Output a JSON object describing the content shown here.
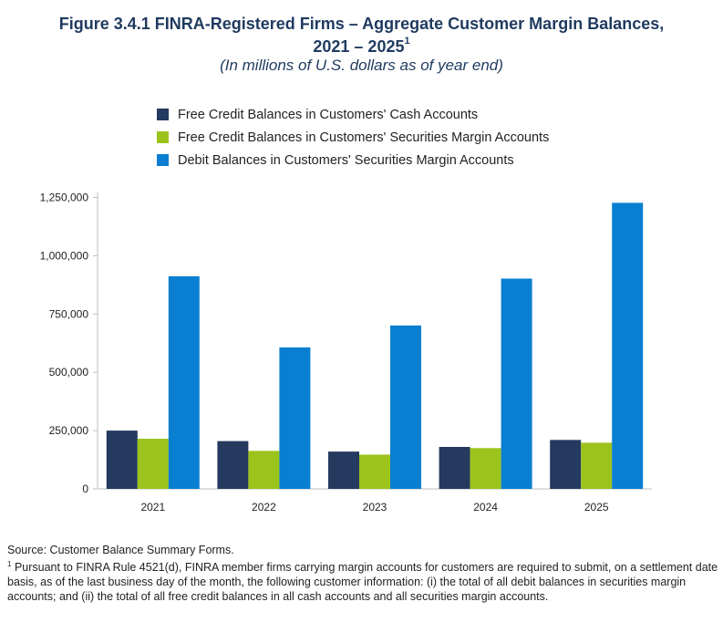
{
  "title": {
    "line1": "Figure 3.4.1 FINRA-Registered Firms – Aggregate Customer Margin Balances,",
    "line2": "2021 – 2025",
    "sup": "1",
    "subtitle": "(In millions of U.S. dollars as of year end)"
  },
  "colors": {
    "cash": "#243a5e",
    "securities": "#9bc31c",
    "debit": "#0a7fd1",
    "axis": "#bfbfbf"
  },
  "legend": [
    {
      "label": "Free Credit Balances in Customers' Cash Accounts",
      "color": "#243a5e"
    },
    {
      "label": "Free Credit Balances in Customers' Securities Margin Accounts",
      "color": "#9bc31c"
    },
    {
      "label": "Debit Balances in Customers' Securities Margin Accounts",
      "color": "#0a7fd1"
    }
  ],
  "chart_data": {
    "type": "bar",
    "title": "Figure 3.4.1 FINRA-Registered Firms – Aggregate Customer Margin Balances, 2021 – 2025",
    "subtitle": "(In millions of U.S. dollars as of year end)",
    "categories": [
      "2021",
      "2022",
      "2023",
      "2024",
      "2025"
    ],
    "series": [
      {
        "name": "Free Credit Balances in Customers' Cash Accounts",
        "color": "#243a5e",
        "values": [
          250000,
          205000,
          160000,
          180000,
          210000
        ]
      },
      {
        "name": "Free Credit Balances in Customers' Securities Margin Accounts",
        "color": "#9bc31c",
        "values": [
          215000,
          163000,
          147000,
          175000,
          198000
        ]
      },
      {
        "name": "Debit Balances in Customers' Securities Margin Accounts",
        "color": "#0a7fd1",
        "values": [
          912000,
          607000,
          701000,
          902000,
          1227000
        ]
      }
    ],
    "ylim": [
      0,
      1250000
    ],
    "yticks": [
      0,
      250000,
      500000,
      750000,
      1000000,
      1250000
    ],
    "ytick_labels": [
      "0",
      "250,000",
      "500,000",
      "750,000",
      "1,000,000",
      "1,250,000"
    ],
    "legend_position": "top-left",
    "grid": false
  },
  "footer": {
    "source": "Source: Customer Balance Summary Forms.",
    "note_sup": "1",
    "note": "Pursuant to FINRA Rule 4521(d), FINRA member firms carrying margin accounts for customers are required to submit, on a settlement date basis, as of the last business day of the month, the following customer information: (i) the total of all debit balances in securities margin accounts; and (ii) the total of all free credit balances in all cash accounts and all securities margin accounts."
  }
}
